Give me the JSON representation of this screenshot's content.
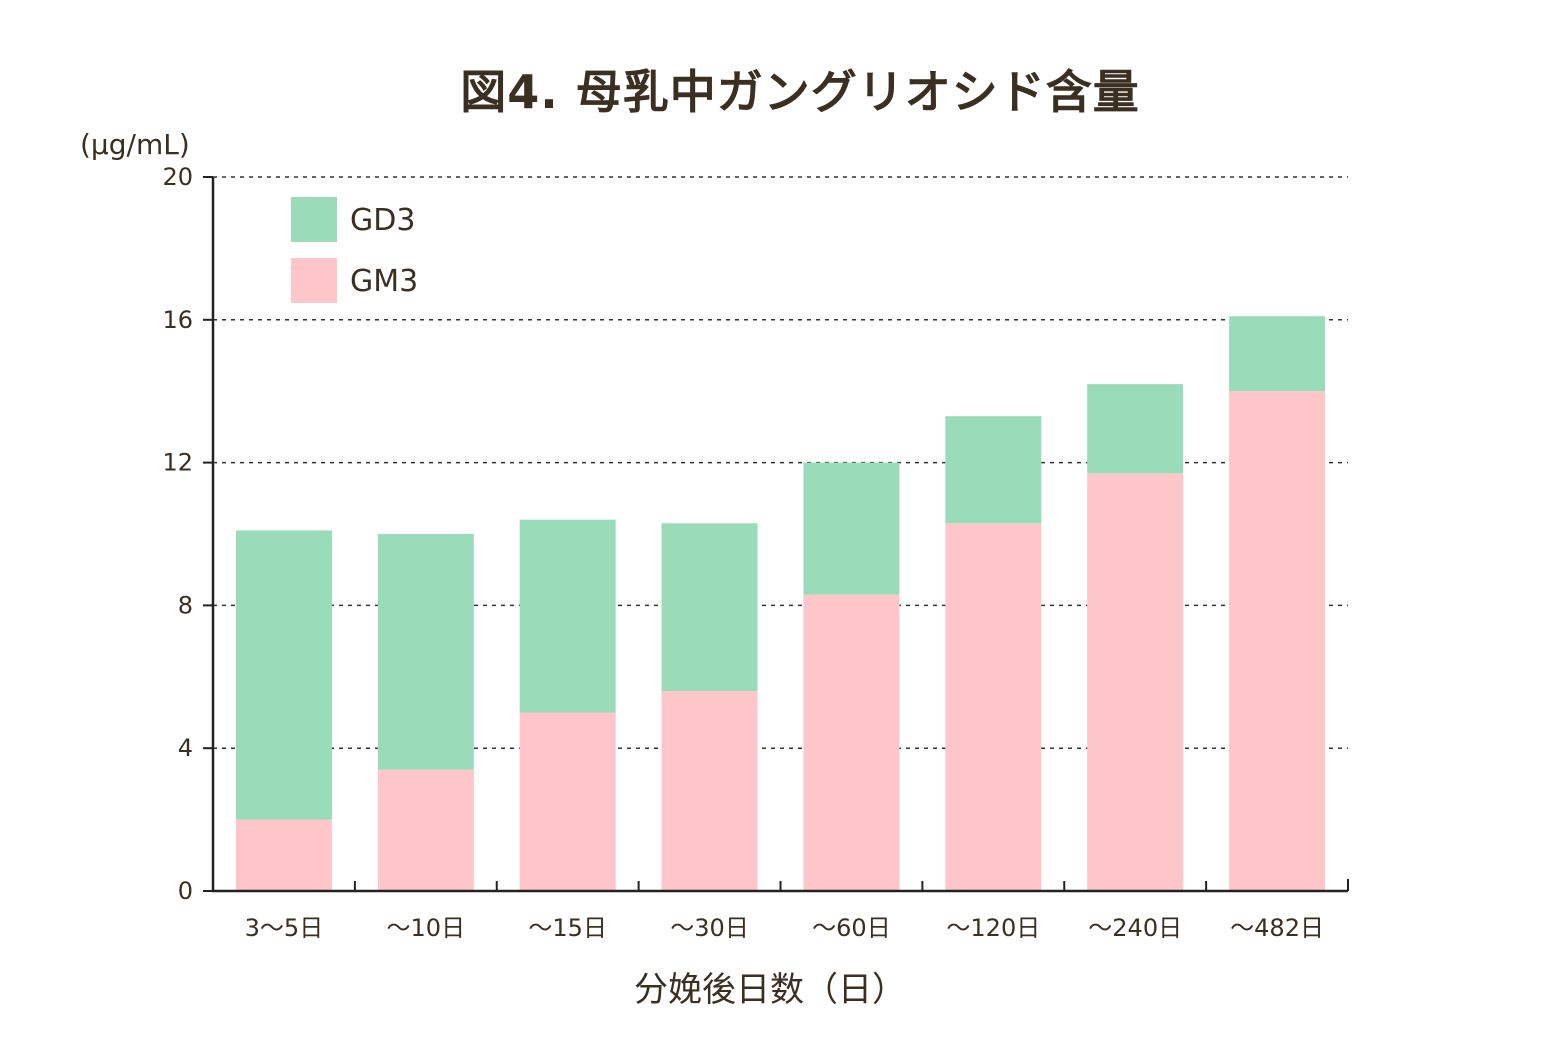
{
  "chart_data": {
    "type": "bar",
    "stacked": true,
    "title": "図4. 母乳中ガングリオシド含量",
    "xlabel": "分娩後日数（日）",
    "ylabel": "(μg/mL)",
    "ylim": [
      0,
      20
    ],
    "yticks": [
      "0",
      "4",
      "8",
      "12",
      "16",
      "20"
    ],
    "grid": "horizontal dashed",
    "legend": "top-left",
    "categories": [
      "3〜5日",
      "〜10日",
      "〜15日",
      "〜30日",
      "〜60日",
      "〜120日",
      "〜240日",
      "〜482日"
    ],
    "series": [
      {
        "name": "GM3",
        "color": "#fec6c8",
        "values": [
          2.0,
          3.4,
          5.0,
          5.6,
          8.3,
          10.3,
          11.7,
          14.0
        ]
      },
      {
        "name": "GD3",
        "color": "#9adcb9",
        "values": [
          8.1,
          6.6,
          5.4,
          4.7,
          3.7,
          3.0,
          2.5,
          2.1
        ]
      }
    ]
  }
}
